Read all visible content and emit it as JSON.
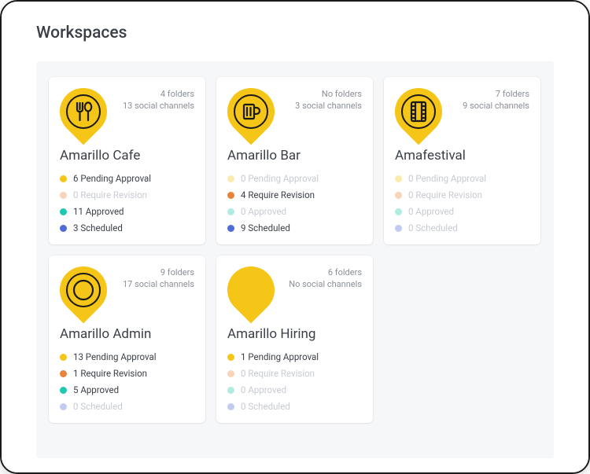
{
  "page_title": "Workspaces",
  "colors": {
    "pin": "#f5c518",
    "outline": "#1a1a1a",
    "pending": "#f5c518",
    "revision": "#e8833a",
    "approved": "#1fc9b0",
    "scheduled": "#4f6bd8",
    "text": "#3a3f47",
    "faded": "#c7cbd1"
  },
  "card_type": "workspace-card",
  "status_labels": {
    "pending": "Pending Approval",
    "revision": "Require Revision",
    "approved": "Approved",
    "scheduled": "Scheduled"
  },
  "workspaces": [
    {
      "name": "Amarillo Cafe",
      "folders_text": "4 folders",
      "channels_text": "13 social channels",
      "icon": "fork-spoon",
      "stats": {
        "pending": {
          "count": 6,
          "active": true
        },
        "revision": {
          "count": 0,
          "active": false
        },
        "approved": {
          "count": 11,
          "active": true
        },
        "scheduled": {
          "count": 3,
          "active": true
        }
      }
    },
    {
      "name": "Amarillo Bar",
      "folders_text": "No folders",
      "channels_text": "3 social channels",
      "icon": "mug",
      "stats": {
        "pending": {
          "count": 0,
          "active": false
        },
        "revision": {
          "count": 4,
          "active": true
        },
        "approved": {
          "count": 0,
          "active": false
        },
        "scheduled": {
          "count": 9,
          "active": true
        }
      }
    },
    {
      "name": "Amafestival",
      "folders_text": "7 folders",
      "channels_text": "9 social channels",
      "icon": "film",
      "stats": {
        "pending": {
          "count": 0,
          "active": false
        },
        "revision": {
          "count": 0,
          "active": false
        },
        "approved": {
          "count": 0,
          "active": false
        },
        "scheduled": {
          "count": 0,
          "active": false
        }
      }
    },
    {
      "name": "Amarillo Admin",
      "folders_text": "9 folders",
      "channels_text": "17 social channels",
      "icon": "plate",
      "stats": {
        "pending": {
          "count": 13,
          "active": true
        },
        "revision": {
          "count": 1,
          "active": true
        },
        "approved": {
          "count": 5,
          "active": true
        },
        "scheduled": {
          "count": 0,
          "active": false
        }
      }
    },
    {
      "name": "Amarillo Hiring",
      "folders_text": "6 folders",
      "channels_text": "No social channels",
      "icon": "none",
      "stats": {
        "pending": {
          "count": 1,
          "active": true
        },
        "revision": {
          "count": 0,
          "active": false
        },
        "approved": {
          "count": 0,
          "active": false
        },
        "scheduled": {
          "count": 0,
          "active": false
        }
      }
    }
  ]
}
